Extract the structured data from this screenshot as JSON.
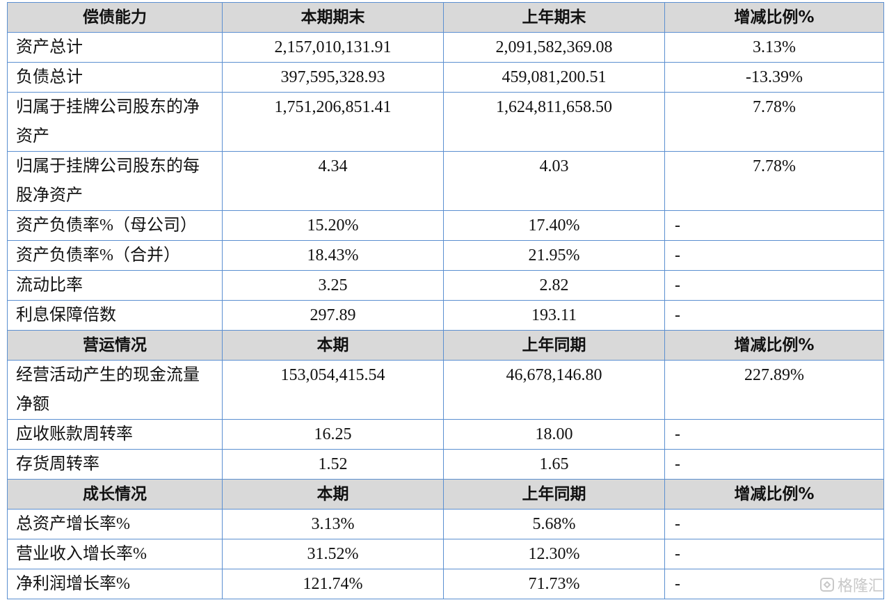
{
  "sections": [
    {
      "header": [
        "偿债能力",
        "本期期末",
        "上年期末",
        "增减比例%"
      ],
      "rows": [
        [
          "资产总计",
          "2,157,010,131.91",
          "2,091,582,369.08",
          "3.13%"
        ],
        [
          "负债总计",
          "397,595,328.93",
          "459,081,200.51",
          "-13.39%"
        ],
        [
          "归属于挂牌公司股东的净资产",
          "1,751,206,851.41",
          "1,624,811,658.50",
          "7.78%"
        ],
        [
          "归属于挂牌公司股东的每股净资产",
          "4.34",
          "4.03",
          "7.78%"
        ],
        [
          "资产负债率%（母公司）",
          "15.20%",
          "17.40%",
          "-"
        ],
        [
          "资产负债率%（合并）",
          "18.43%",
          "21.95%",
          "-"
        ],
        [
          "流动比率",
          "3.25",
          "2.82",
          "-"
        ],
        [
          "利息保障倍数",
          "297.89",
          "193.11",
          "-"
        ]
      ]
    },
    {
      "header": [
        "营运情况",
        "本期",
        "上年同期",
        "增减比例%"
      ],
      "rows": [
        [
          "经营活动产生的现金流量净额",
          "153,054,415.54",
          "46,678,146.80",
          "227.89%"
        ],
        [
          "应收账款周转率",
          "16.25",
          "18.00",
          "-"
        ],
        [
          "存货周转率",
          "1.52",
          "1.65",
          "-"
        ]
      ]
    },
    {
      "header": [
        "成长情况",
        "本期",
        "上年同期",
        "增减比例%"
      ],
      "rows": [
        [
          "总资产增长率%",
          "3.13%",
          "5.68%",
          "-"
        ],
        [
          "营业收入增长率%",
          "31.52%",
          "12.30%",
          "-"
        ],
        [
          "净利润增长率%",
          "121.74%",
          "71.73%",
          "-"
        ]
      ]
    }
  ],
  "watermark": "格隆汇"
}
